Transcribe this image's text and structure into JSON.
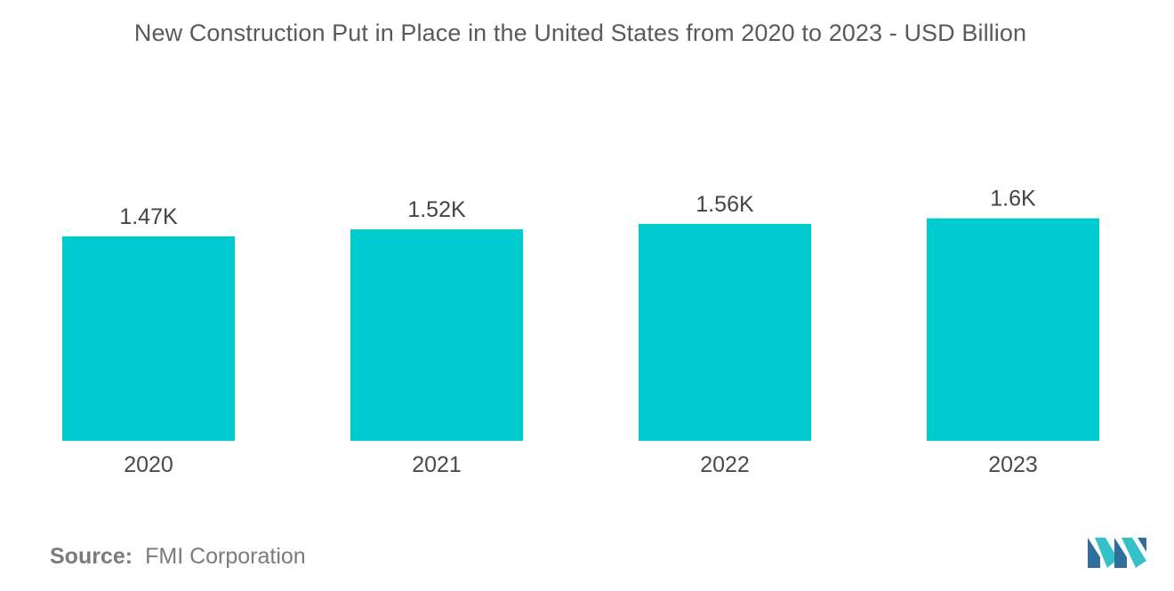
{
  "chart_data": {
    "type": "bar",
    "title": "New Construction Put in Place in the United States from 2020 to 2023 - USD Billion",
    "categories": [
      "2020",
      "2021",
      "2022",
      "2023"
    ],
    "values": [
      1470,
      1520,
      1560,
      1600
    ],
    "data_labels": [
      "1.47K",
      "1.52K",
      "1.56K",
      "1.6K"
    ],
    "xlabel": "",
    "ylabel": "",
    "ylim": [
      0,
      1600
    ],
    "grid": false,
    "legend": "none",
    "bar_color": "#00cccf"
  },
  "source": {
    "label": "Source:",
    "text": "FMI Corporation"
  },
  "colors": {
    "bar": "#00cccf",
    "logo_dark": "#2f6f9b",
    "logo_light": "#34c1c9"
  },
  "icons": {
    "logo": "mordor-intelligence-logo-icon"
  }
}
